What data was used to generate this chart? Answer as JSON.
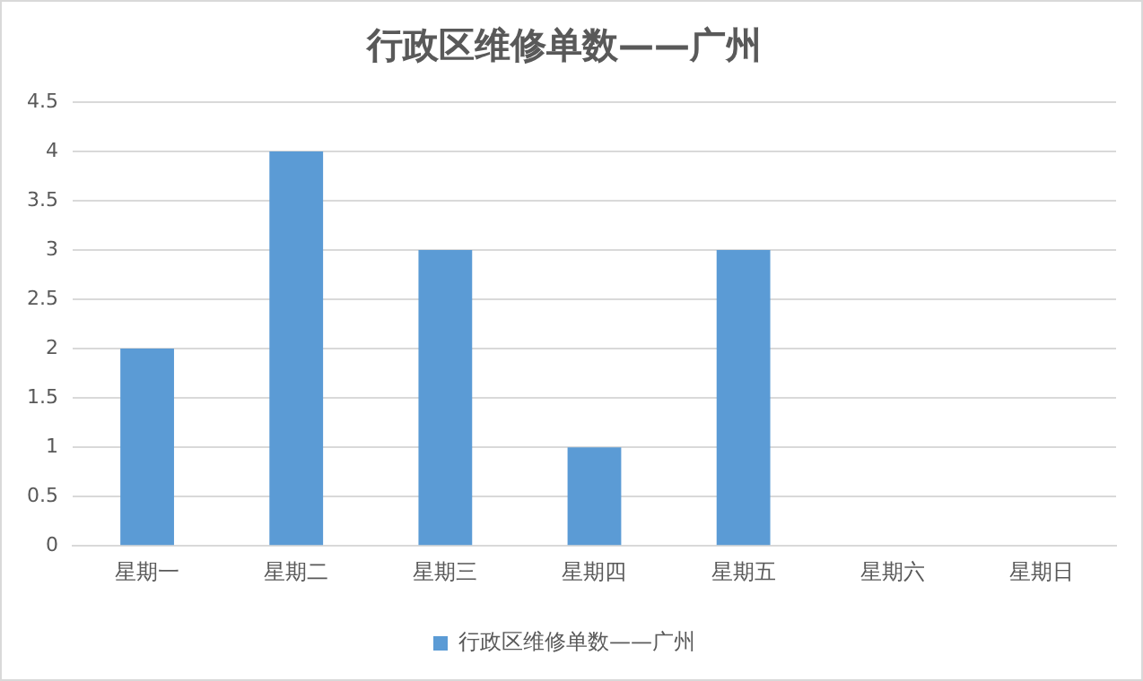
{
  "chart_data": {
    "type": "bar",
    "title": "行政区维修单数——广州",
    "categories": [
      "星期一",
      "星期二",
      "星期三",
      "星期四",
      "星期五",
      "星期六",
      "星期日"
    ],
    "series": [
      {
        "name": "行政区维修单数——广州",
        "color": "#5b9bd5",
        "values": [
          2,
          4,
          3,
          1,
          3,
          0,
          0
        ]
      }
    ],
    "ylim": [
      0,
      4.5
    ],
    "yticks": [
      0,
      0.5,
      1,
      1.5,
      2,
      2.5,
      3,
      3.5,
      4,
      4.5
    ],
    "grid": "y",
    "legend": "bottom"
  }
}
